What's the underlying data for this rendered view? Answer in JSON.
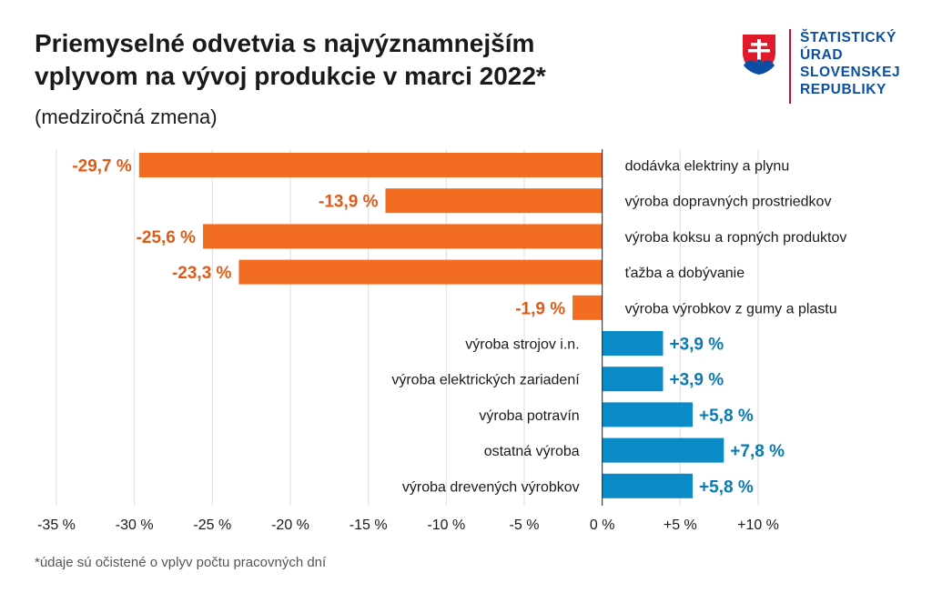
{
  "header": {
    "title_line1": "Priemyselné odvetvia s najvýznamnejším",
    "title_line2": "vplyvom na vývoj produkcie v marci 2022*",
    "subtitle": "(medziročná zmena)"
  },
  "logo": {
    "line1": "ŠTATISTICKÝ",
    "line2": "ÚRAD",
    "line3": "SLOVENSKEJ",
    "line4": "REPUBLIKY",
    "crest": "slovak-coat-of-arms"
  },
  "footnote": "*údaje sú očistené o vplyv počtu pracovných dní",
  "chart_data": {
    "type": "bar",
    "orientation": "horizontal",
    "title": "Priemyselné odvetvia s najvýznamnejším vplyvom na vývoj produkcie v marci 2022*",
    "subtitle": "(medziročná zmena)",
    "xlabel": "",
    "ylabel": "",
    "xlim": [
      -35,
      10
    ],
    "grid": true,
    "unit": "%",
    "colors": {
      "negative": "#f26c21",
      "positive": "#0a8ac6",
      "negative_text": "#e05a17",
      "positive_text": "#0a7ab5"
    },
    "categories": [
      "dodávka elektriny a plynu",
      "výroba dopravných prostriedkov",
      "výroba koksu a ropných produktov",
      "ťažba a dobývanie",
      "výroba výrobkov z gumy a plastu",
      "výroba strojov i.n.",
      "výroba elektrických zariadení",
      "výroba potravín",
      "ostatná výroba",
      "výroba drevených výrobkov"
    ],
    "values": [
      -29.7,
      -13.9,
      -25.6,
      -23.3,
      -1.9,
      3.9,
      3.9,
      5.8,
      7.8,
      5.8
    ],
    "value_labels": [
      "-29,7 %",
      "-13,9 %",
      "-25,6 %",
      "-23,3 %",
      "-1,9 %",
      "+3,9 %",
      "+3,9 %",
      "+5,8 %",
      "+7,8 %",
      "+5,8 %"
    ],
    "ticks": [
      -35,
      -30,
      -25,
      -20,
      -15,
      -10,
      -5,
      0,
      5,
      10
    ],
    "tick_labels": [
      "-35 %",
      "-30 %",
      "-25 %",
      "-20 %",
      "-15 %",
      "-10 %",
      "-5 %",
      "0 %",
      "+5 %",
      "+10 %"
    ]
  }
}
